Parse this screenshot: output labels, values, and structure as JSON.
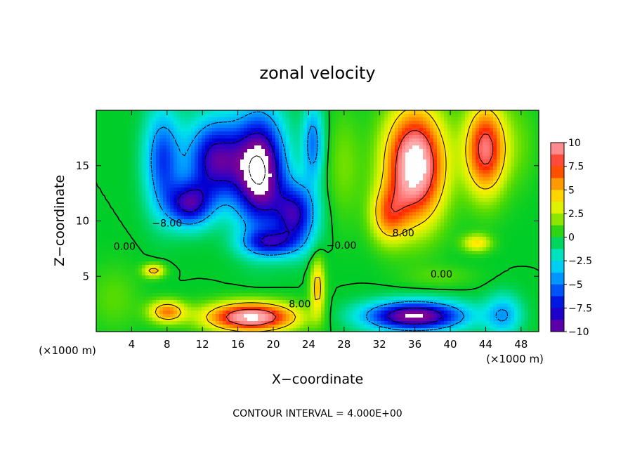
{
  "chart_data": {
    "type": "heatmap",
    "title": "zonal velocity",
    "xlabel": "X−coordinate",
    "ylabel": "Z−coordinate",
    "x_unit": "(×1000 m)",
    "y_unit": "(×1000 m)",
    "xlim": [
      0,
      50
    ],
    "ylim": [
      0,
      20
    ],
    "xticks": [
      4,
      8,
      12,
      16,
      20,
      24,
      28,
      32,
      36,
      40,
      44,
      48
    ],
    "yticks": [
      5,
      10,
      15
    ],
    "colorbar": {
      "min": -10,
      "max": 10,
      "ticks": [
        10,
        7.5,
        5,
        2.5,
        0,
        -2.5,
        -5,
        -7.5,
        -10
      ],
      "tick_labels": [
        "10",
        "7.5",
        "5",
        "2.5",
        "0",
        "−2.5",
        "−5",
        "−7.5",
        "−10"
      ]
    },
    "contour_interval_text": "CONTOUR INTERVAL = 4.000E+00",
    "contour_labels": [
      {
        "text": "0.00",
        "x": 3.2,
        "z": 7.4
      },
      {
        "text": "−8.00",
        "x": 8.0,
        "z": 9.5
      },
      {
        "text": "−0.00",
        "x": 27.7,
        "z": 7.5
      },
      {
        "text": "8.00",
        "x": 34.7,
        "z": 8.6
      },
      {
        "text": "0.00",
        "x": 39.0,
        "z": 4.9
      },
      {
        "text": "8.00",
        "x": 23.0,
        "z": 2.2
      }
    ],
    "grid": false,
    "legend": "right",
    "features": [
      {
        "x": 13.5,
        "z": 15.5,
        "sx": 3.2,
        "sz": 3.6,
        "v": -9
      },
      {
        "x": 10.5,
        "z": 11.5,
        "sx": 2.5,
        "sz": 2.0,
        "v": -8
      },
      {
        "x": 7.5,
        "z": 15.5,
        "sx": 2.0,
        "sz": 4.5,
        "v": -6
      },
      {
        "x": 18.5,
        "z": 14.5,
        "sx": 2.8,
        "sz": 5.0,
        "v": -12
      },
      {
        "x": 22.5,
        "z": 10.5,
        "sx": 2.3,
        "sz": 2.8,
        "v": -8
      },
      {
        "x": 19.5,
        "z": 8.0,
        "sx": 3.0,
        "sz": 1.2,
        "v": -6
      },
      {
        "x": 24.5,
        "z": 17.0,
        "sx": 1.2,
        "sz": 3.5,
        "v": -5
      },
      {
        "x": 36.0,
        "z": 15.0,
        "sx": 3.3,
        "sz": 5.0,
        "v": 12
      },
      {
        "x": 44.0,
        "z": 16.5,
        "sx": 2.3,
        "sz": 4.0,
        "v": 9
      },
      {
        "x": 33.0,
        "z": 10.5,
        "sx": 2.0,
        "sz": 2.5,
        "v": 5
      },
      {
        "x": 43.0,
        "z": 8.0,
        "sx": 1.6,
        "sz": 0.8,
        "v": 4
      },
      {
        "x": 17.5,
        "z": 1.3,
        "sx": 5.0,
        "sz": 1.3,
        "v": 11
      },
      {
        "x": 8.0,
        "z": 1.8,
        "sx": 2.0,
        "sz": 1.0,
        "v": 6
      },
      {
        "x": 6.5,
        "z": 5.5,
        "sx": 1.2,
        "sz": 0.6,
        "v": 5
      },
      {
        "x": 25.0,
        "z": 4.0,
        "sx": 0.8,
        "sz": 2.5,
        "v": 5
      },
      {
        "x": 36.0,
        "z": 1.4,
        "sx": 5.5,
        "sz": 1.3,
        "v": -11
      },
      {
        "x": 46.0,
        "z": 1.5,
        "sx": 2.0,
        "sz": 1.8,
        "v": -4
      },
      {
        "x": 28.0,
        "z": 15.0,
        "sx": 2.0,
        "sz": 5.0,
        "v": 1.5
      },
      {
        "x": 2.0,
        "z": 3.0,
        "sx": 3.0,
        "sz": 3.0,
        "v": 1.2
      },
      {
        "x": 48.0,
        "z": 17.0,
        "sx": 2.0,
        "sz": 4.0,
        "v": 1.0
      },
      {
        "x": 39.0,
        "z": 5.0,
        "sx": 4.0,
        "sz": 1.0,
        "v": 1.0
      }
    ]
  }
}
